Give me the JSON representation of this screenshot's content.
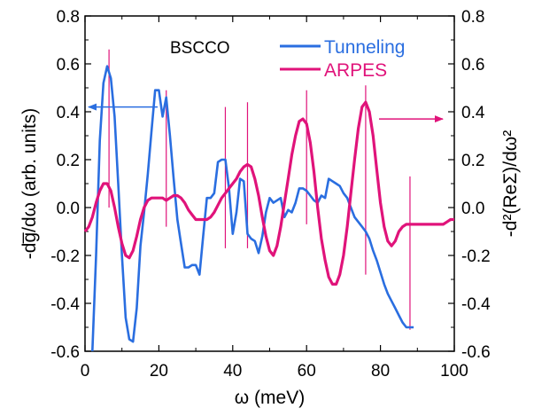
{
  "chart_data": {
    "type": "line",
    "title": "",
    "annotation": "BSCCO",
    "xlabel": "ω (meV)",
    "ylabel_left": "-dg̅/dω (arb. units)",
    "ylabel_right": "-d²(ReΣ)/dω²",
    "xlim": [
      0,
      100
    ],
    "ylim": [
      -0.6,
      0.8
    ],
    "x_ticks": [
      "0",
      "20",
      "40",
      "60",
      "80",
      "100"
    ],
    "y_ticks_left": [
      "-0.6",
      "-0.4",
      "-0.2",
      "0.0",
      "0.2",
      "0.4",
      "0.6",
      "0.8"
    ],
    "y_ticks_right": [
      "-0.6",
      "-0.4",
      "-0.2",
      "0.0",
      "0.2",
      "0.4",
      "0.6",
      "0.8"
    ],
    "grid": false,
    "legend_position": "top-right",
    "series": [
      {
        "name": "Tunneling",
        "color": "#2a6ee0",
        "axis": "left",
        "x": [
          2,
          3,
          4,
          5,
          6,
          7,
          8,
          9,
          10,
          11,
          12,
          13,
          14,
          15,
          16,
          17,
          18,
          19,
          20,
          21,
          22,
          23,
          24,
          25,
          26,
          27,
          28,
          29,
          30,
          31,
          32,
          33,
          34,
          35,
          36,
          37,
          38,
          39,
          40,
          41,
          42,
          43,
          44,
          45,
          46,
          47,
          48,
          49,
          50,
          51,
          52,
          53,
          54,
          55,
          56,
          57,
          58,
          59,
          60,
          61,
          62,
          63,
          64,
          65,
          66,
          67,
          68,
          69,
          70,
          71,
          72,
          73,
          74,
          75,
          76,
          77,
          78,
          79,
          80,
          81,
          82,
          83,
          84,
          85,
          86,
          87,
          88,
          89
        ],
        "values": [
          -0.6,
          -0.2,
          0.28,
          0.52,
          0.59,
          0.54,
          0.38,
          0.1,
          -0.2,
          -0.46,
          -0.55,
          -0.56,
          -0.42,
          -0.16,
          -0.02,
          0.14,
          0.32,
          0.49,
          0.49,
          0.38,
          0.46,
          0.3,
          0.12,
          -0.05,
          -0.15,
          -0.25,
          -0.25,
          -0.24,
          -0.24,
          -0.28,
          -0.12,
          0.04,
          0.04,
          0.06,
          0.19,
          0.2,
          0.2,
          0.08,
          -0.11,
          -0.02,
          0.12,
          0.11,
          -0.11,
          -0.13,
          -0.14,
          -0.19,
          -0.12,
          -0.02,
          0.04,
          0.02,
          0.03,
          0.04,
          -0.04,
          -0.01,
          -0.02,
          0.02,
          0.08,
          0.08,
          0.07,
          0.05,
          0.03,
          0.02,
          0.05,
          0.04,
          0.12,
          0.11,
          0.1,
          0.09,
          0.06,
          0.04,
          0.0,
          -0.04,
          -0.06,
          -0.08,
          -0.1,
          -0.13,
          -0.18,
          -0.22,
          -0.27,
          -0.32,
          -0.36,
          -0.39,
          -0.42,
          -0.45,
          -0.48,
          -0.5,
          -0.5,
          -0.5
        ]
      },
      {
        "name": "ARPES",
        "color": "#e0137a",
        "axis": "right",
        "x": [
          0,
          1,
          2,
          3,
          4,
          5,
          6,
          7,
          8,
          9,
          10,
          11,
          12,
          13,
          14,
          15,
          16,
          17,
          18,
          19,
          20,
          21,
          22,
          23,
          24,
          25,
          26,
          27,
          28,
          29,
          30,
          31,
          32,
          33,
          34,
          35,
          36,
          37,
          38,
          39,
          40,
          41,
          42,
          43,
          44,
          45,
          46,
          47,
          48,
          49,
          50,
          51,
          52,
          53,
          54,
          55,
          56,
          57,
          58,
          59,
          60,
          61,
          62,
          63,
          64,
          65,
          66,
          67,
          68,
          69,
          70,
          71,
          72,
          73,
          74,
          75,
          76,
          77,
          78,
          79,
          80,
          81,
          82,
          83,
          84,
          85,
          86,
          87,
          88,
          89,
          90,
          91,
          92,
          93,
          94,
          95,
          96,
          97,
          98,
          99,
          100
        ],
        "values": [
          -0.1,
          -0.08,
          -0.04,
          0.02,
          0.07,
          0.1,
          0.1,
          0.07,
          0.0,
          -0.08,
          -0.15,
          -0.2,
          -0.21,
          -0.18,
          -0.12,
          -0.05,
          0.0,
          0.03,
          0.04,
          0.04,
          0.04,
          0.04,
          0.03,
          0.04,
          0.05,
          0.05,
          0.04,
          0.02,
          -0.01,
          -0.03,
          -0.05,
          -0.05,
          -0.05,
          -0.05,
          -0.04,
          -0.02,
          0.01,
          0.04,
          0.06,
          0.08,
          0.1,
          0.12,
          0.15,
          0.17,
          0.18,
          0.17,
          0.12,
          0.05,
          -0.04,
          -0.12,
          -0.18,
          -0.2,
          -0.16,
          -0.08,
          0.02,
          0.12,
          0.22,
          0.3,
          0.36,
          0.37,
          0.35,
          0.27,
          0.15,
          0.0,
          -0.13,
          -0.22,
          -0.29,
          -0.32,
          -0.32,
          -0.28,
          -0.2,
          -0.08,
          0.06,
          0.2,
          0.33,
          0.42,
          0.44,
          0.4,
          0.3,
          0.16,
          0.02,
          -0.08,
          -0.14,
          -0.16,
          -0.14,
          -0.1,
          -0.08,
          -0.07,
          -0.07,
          -0.07,
          -0.07,
          -0.07,
          -0.07,
          -0.07,
          -0.07,
          -0.07,
          -0.07,
          -0.07,
          -0.06,
          -0.05,
          -0.05
        ]
      }
    ],
    "vertical_markers": [
      {
        "x": 6.5,
        "y_top": 0.66,
        "y_bottom": 0.0
      },
      {
        "x": 22,
        "y_top": 0.49,
        "y_bottom": -0.08
      },
      {
        "x": 38,
        "y_top": 0.42,
        "y_bottom": -0.17
      },
      {
        "x": 44,
        "y_top": 0.44,
        "y_bottom": -0.17
      },
      {
        "x": 60,
        "y_top": 0.49,
        "y_bottom": -0.07
      },
      {
        "x": 76,
        "y_top": 0.51,
        "y_bottom": -0.28
      },
      {
        "x": 88,
        "y_top": 0.13,
        "y_bottom": -0.51
      }
    ],
    "axis_arrows": [
      {
        "direction": "left",
        "x_from": 20,
        "x_to": 0,
        "y": 0.42,
        "color": "#2a6ee0"
      },
      {
        "direction": "right",
        "x_from": 80,
        "x_to": 100,
        "y": 0.37,
        "color": "#e0137a"
      }
    ]
  }
}
